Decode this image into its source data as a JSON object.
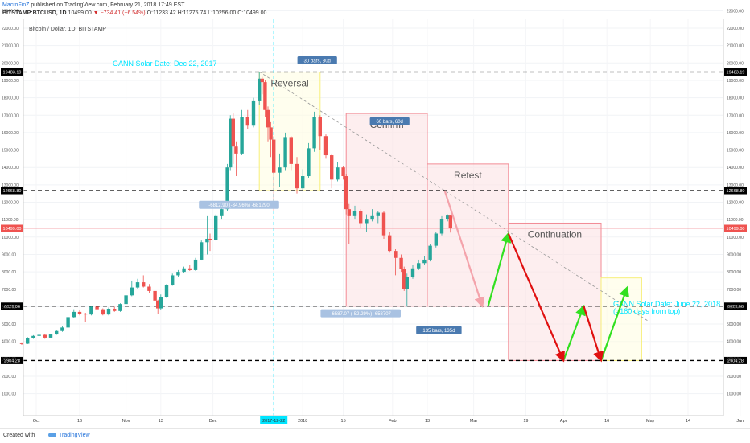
{
  "header": {
    "author": "MacroFinZ",
    "published": "published on TradingView.com, February 21, 2018 17:49 EST",
    "symbol": "BITSTAMP:BTCUSD, 1D",
    "last": "10499.00",
    "arrow": "▼",
    "change": "−734.41 (−6.54%)",
    "ohlc": "O:11233.42 H:11275.74 L:10256.00 C:10499.00"
  },
  "footer": {
    "created_with": "Created with",
    "brand": "TradingView"
  },
  "colors": {
    "up": "#26a69a",
    "down": "#ef5350",
    "arrow_up": "#32e020",
    "arrow_down": "#e01010",
    "cyan": "#00e5ff",
    "pink_fill": "#fbe3e5",
    "pink_border": "#f28b95",
    "yellow_fill": "#fffde0",
    "yellow_border": "#f7ef7a"
  },
  "chart_data": {
    "type": "candlestick",
    "title": "Bitcoin / Dollar, 1D, BITSTAMP",
    "ylim": [
      0,
      23000
    ],
    "y_ticks": [
      1000,
      2000,
      3000,
      4000,
      5000,
      6000,
      7000,
      8000,
      9000,
      10000,
      11000,
      12000,
      13000,
      14000,
      15000,
      16000,
      17000,
      18000,
      19000,
      20000,
      21000,
      22000,
      23000
    ],
    "x_ticks": [
      {
        "label": "Oct",
        "date": "2017-10-01"
      },
      {
        "label": "16",
        "date": "2017-10-16"
      },
      {
        "label": "Nov",
        "date": "2017-11-01"
      },
      {
        "label": "13",
        "date": "2017-11-13"
      },
      {
        "label": "Dec",
        "date": "2017-12-01"
      },
      {
        "label": "2017-12-22",
        "date": "2017-12-22",
        "highlight": true
      },
      {
        "label": "2018",
        "date": "2018-01-01"
      },
      {
        "label": "15",
        "date": "2018-01-15"
      },
      {
        "label": "Feb",
        "date": "2018-02-01"
      },
      {
        "label": "13",
        "date": "2018-02-13"
      },
      {
        "label": "Mar",
        "date": "2018-03-01"
      },
      {
        "label": "19",
        "date": "2018-03-19"
      },
      {
        "label": "Apr",
        "date": "2018-04-01"
      },
      {
        "label": "16",
        "date": "2018-04-16"
      },
      {
        "label": "May",
        "date": "2018-05-01"
      },
      {
        "label": "14",
        "date": "2018-05-14"
      },
      {
        "label": "Jun",
        "date": "2018-06-01"
      },
      {
        "label": "2018-06",
        "date": "2018-06-22",
        "highlight": true
      }
    ],
    "price_levels": [
      {
        "label": "19483.19",
        "value": 19483.19,
        "style": "dashed"
      },
      {
        "label": "12668.80",
        "value": 12668.8,
        "style": "dashed"
      },
      {
        "label": "10499.00",
        "value": 10499.0,
        "style": "last"
      },
      {
        "label": "6029.06",
        "value": 6029.06,
        "style": "dashed"
      },
      {
        "label": "2904.28",
        "value": 2904.28,
        "style": "dashed"
      }
    ],
    "vertical_lines": [
      {
        "date": "2017-12-22",
        "label": "GANN Solar Date: Dec 22, 2017"
      },
      {
        "date": "2018-06-22",
        "label_lines": [
          "GANN Solar Date: June 22, 2018",
          "(=180 days from top)"
        ]
      }
    ],
    "zones": [
      {
        "label": "Reversal",
        "x0": "2017-12-17",
        "x1": "2018-01-07",
        "y0": 12668.8,
        "y1": 19483.19,
        "kind": "yellow"
      },
      {
        "label": "Confirm",
        "x0": "2018-01-16",
        "x1": "2018-02-13",
        "y0": 6029.06,
        "y1": 17100,
        "kind": "pink"
      },
      {
        "label": "Retest",
        "x0": "2018-02-13",
        "x1": "2018-03-13",
        "y0": 6029.06,
        "y1": 14200,
        "kind": "pink"
      },
      {
        "label": "Continuation",
        "x0": "2018-03-13",
        "x1": "2018-04-14",
        "y0": 2904.28,
        "y1": 10800,
        "kind": "pink"
      },
      {
        "label": "",
        "x0": "2018-04-14",
        "x1": "2018-04-28",
        "y0": 2904.28,
        "y1": 7650,
        "kind": "yellow"
      }
    ],
    "measures": [
      {
        "label": "30 bars, 30d",
        "date": "2018-01-06",
        "y": 20150
      },
      {
        "label": "60 bars, 60d",
        "date": "2018-01-31",
        "y": 16650
      },
      {
        "label": "135 bars, 135d",
        "date": "2018-02-17",
        "y": 4650
      },
      {
        "label": "-6812.90 (-34.96%) -681290",
        "date": "2017-12-10",
        "y": 11850
      },
      {
        "label": "-6587.07 (-52.29%) -658707",
        "date": "2018-01-21",
        "y": 5620
      }
    ],
    "projection": {
      "green": [
        {
          "from": [
            "2018-03-06",
            6029
          ],
          "to": [
            "2018-03-13",
            10200
          ]
        },
        {
          "from": [
            "2018-04-01",
            2904
          ],
          "to": [
            "2018-04-08",
            6029
          ]
        },
        {
          "from": [
            "2018-04-14",
            2904
          ],
          "to": [
            "2018-04-23",
            7100
          ]
        }
      ],
      "red": [
        {
          "from": [
            "2018-03-13",
            10200
          ],
          "to": [
            "2018-04-01",
            2904
          ]
        },
        {
          "from": [
            "2018-04-08",
            6029
          ],
          "to": [
            "2018-04-14",
            2904
          ]
        }
      ],
      "pink": [
        {
          "from": [
            "2018-02-19",
            12668
          ],
          "to": [
            "2018-03-04",
            6029
          ]
        }
      ]
    },
    "trendline": {
      "from": [
        "2017-12-17",
        19500
      ],
      "to": [
        "2018-04-30",
        5200
      ]
    },
    "candles": [
      [
        "2017-09-26",
        3900,
        3950,
        3800,
        3870
      ],
      [
        "2017-09-28",
        3870,
        4250,
        3850,
        4200
      ],
      [
        "2017-09-30",
        4200,
        4360,
        4150,
        4320
      ],
      [
        "2017-10-02",
        4320,
        4420,
        4250,
        4380
      ],
      [
        "2017-10-04",
        4380,
        4450,
        4150,
        4220
      ],
      [
        "2017-10-06",
        4220,
        4450,
        4200,
        4400
      ],
      [
        "2017-10-08",
        4400,
        4650,
        4380,
        4600
      ],
      [
        "2017-10-10",
        4600,
        4900,
        4550,
        4800
      ],
      [
        "2017-10-12",
        4800,
        5500,
        4750,
        5400
      ],
      [
        "2017-10-14",
        5400,
        5850,
        5350,
        5700
      ],
      [
        "2017-10-16",
        5700,
        5800,
        5500,
        5600
      ],
      [
        "2017-10-18",
        5600,
        5650,
        5100,
        5550
      ],
      [
        "2017-10-20",
        5550,
        6050,
        5500,
        6000
      ],
      [
        "2017-10-22",
        6000,
        6150,
        5750,
        5850
      ],
      [
        "2017-10-24",
        5850,
        5900,
        5500,
        5550
      ],
      [
        "2017-10-26",
        5550,
        5950,
        5500,
        5880
      ],
      [
        "2017-10-28",
        5880,
        6000,
        5700,
        5750
      ],
      [
        "2017-10-30",
        5750,
        6200,
        5700,
        6150
      ],
      [
        "2017-11-01",
        6150,
        6700,
        6100,
        6650
      ],
      [
        "2017-11-03",
        6650,
        7500,
        6600,
        7100
      ],
      [
        "2017-11-05",
        7100,
        7600,
        7000,
        7400
      ],
      [
        "2017-11-07",
        7400,
        7800,
        7100,
        7150
      ],
      [
        "2017-11-09",
        7150,
        7300,
        6800,
        6900
      ],
      [
        "2017-11-11",
        6900,
        7000,
        6200,
        6350
      ],
      [
        "2017-11-12",
        6350,
        6400,
        5600,
        5900
      ],
      [
        "2017-11-13",
        5900,
        6700,
        5800,
        6550
      ],
      [
        "2017-11-15",
        6550,
        7300,
        6500,
        7250
      ],
      [
        "2017-11-17",
        7250,
        7900,
        7200,
        7800
      ],
      [
        "2017-11-19",
        7800,
        8100,
        7700,
        8000
      ],
      [
        "2017-11-21",
        8000,
        8300,
        7950,
        8200
      ],
      [
        "2017-11-23",
        8200,
        8400,
        8050,
        8100
      ],
      [
        "2017-11-25",
        8100,
        8800,
        8050,
        8700
      ],
      [
        "2017-11-27",
        8700,
        9800,
        8650,
        9700
      ],
      [
        "2017-11-29",
        9700,
        11200,
        9000,
        9900
      ],
      [
        "2017-11-30",
        9900,
        10200,
        9200,
        9850
      ],
      [
        "2017-12-02",
        9850,
        11300,
        9800,
        11200
      ],
      [
        "2017-12-04",
        11200,
        11700,
        11000,
        11600
      ],
      [
        "2017-12-06",
        11600,
        14200,
        11500,
        14000
      ],
      [
        "2017-12-07",
        14000,
        17000,
        13800,
        16800
      ],
      [
        "2017-12-08",
        16800,
        17100,
        14200,
        15200
      ],
      [
        "2017-12-09",
        15200,
        15500,
        13500,
        14800
      ],
      [
        "2017-12-11",
        14800,
        17300,
        14700,
        16900
      ],
      [
        "2017-12-13",
        16900,
        17300,
        16200,
        16400
      ],
      [
        "2017-12-15",
        16400,
        18000,
        16300,
        17800
      ],
      [
        "2017-12-17",
        17800,
        19483,
        17600,
        19100
      ],
      [
        "2017-12-18",
        19100,
        19200,
        18200,
        18900
      ],
      [
        "2017-12-19",
        18900,
        19000,
        16900,
        17300
      ],
      [
        "2017-12-20",
        17300,
        17500,
        15500,
        16300
      ],
      [
        "2017-12-21",
        16300,
        16600,
        14600,
        15600
      ],
      [
        "2017-12-22",
        15600,
        15800,
        11500,
        13700
      ],
      [
        "2017-12-24",
        13700,
        14800,
        12900,
        14000
      ],
      [
        "2017-12-26",
        14000,
        16000,
        13800,
        15700
      ],
      [
        "2017-12-28",
        15700,
        15800,
        13800,
        14200
      ],
      [
        "2017-12-30",
        14200,
        14600,
        12500,
        12800
      ],
      [
        "2018-01-01",
        12800,
        13900,
        12700,
        13500
      ],
      [
        "2018-01-03",
        13500,
        15400,
        13400,
        15100
      ],
      [
        "2018-01-05",
        15100,
        17200,
        14900,
        16900
      ],
      [
        "2018-01-07",
        16900,
        17000,
        15000,
        15800
      ],
      [
        "2018-01-09",
        15800,
        15900,
        14500,
        14700
      ],
      [
        "2018-01-11",
        14700,
        14800,
        12800,
        13300
      ],
      [
        "2018-01-13",
        13300,
        14300,
        13200,
        14000
      ],
      [
        "2018-01-15",
        14000,
        14100,
        13300,
        13500
      ],
      [
        "2018-01-16",
        13500,
        13600,
        11300,
        11600
      ],
      [
        "2018-01-17",
        11600,
        11900,
        9600,
        11200
      ],
      [
        "2018-01-19",
        11200,
        11800,
        11000,
        11500
      ],
      [
        "2018-01-21",
        11500,
        11600,
        10500,
        10800
      ],
      [
        "2018-01-23",
        10800,
        11300,
        10300,
        11000
      ],
      [
        "2018-01-25",
        11000,
        11600,
        10900,
        11200
      ],
      [
        "2018-01-27",
        11200,
        11500,
        10800,
        11400
      ],
      [
        "2018-01-29",
        11400,
        11500,
        9900,
        10100
      ],
      [
        "2018-01-31",
        10100,
        10300,
        9100,
        9200
      ],
      [
        "2018-02-02",
        9200,
        9300,
        7800,
        8800
      ],
      [
        "2018-02-04",
        8800,
        9000,
        8000,
        8150
      ],
      [
        "2018-02-05",
        8150,
        8300,
        6900,
        7000
      ],
      [
        "2018-02-06",
        7000,
        7900,
        6000,
        7700
      ],
      [
        "2018-02-08",
        7700,
        8400,
        7600,
        8200
      ],
      [
        "2018-02-10",
        8200,
        8700,
        8100,
        8500
      ],
      [
        "2018-02-12",
        8500,
        8900,
        8400,
        8700
      ],
      [
        "2018-02-14",
        8700,
        9600,
        8600,
        9500
      ],
      [
        "2018-02-16",
        9500,
        10300,
        9400,
        10200
      ],
      [
        "2018-02-18",
        10200,
        11200,
        10100,
        11050
      ],
      [
        "2018-02-20",
        11050,
        11300,
        10900,
        11233
      ],
      [
        "2018-02-21",
        11233,
        11275,
        10256,
        10499
      ]
    ]
  }
}
